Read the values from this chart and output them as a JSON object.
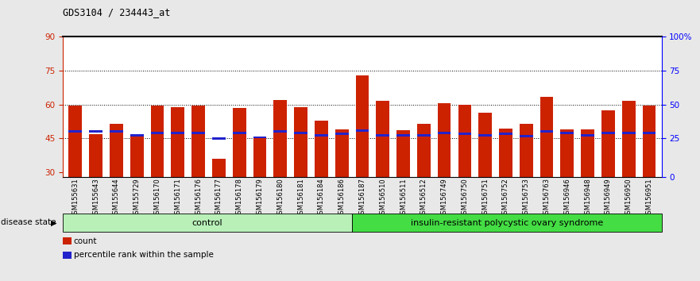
{
  "title": "GDS3104 / 234443_at",
  "samples": [
    "GSM155631",
    "GSM155643",
    "GSM155644",
    "GSM155729",
    "GSM156170",
    "GSM156171",
    "GSM156176",
    "GSM156177",
    "GSM156178",
    "GSM156179",
    "GSM156180",
    "GSM156181",
    "GSM156184",
    "GSM156186",
    "GSM156187",
    "GSM156510",
    "GSM156511",
    "GSM156512",
    "GSM156749",
    "GSM156750",
    "GSM156751",
    "GSM156752",
    "GSM156753",
    "GSM156763",
    "GSM156946",
    "GSM156948",
    "GSM156949",
    "GSM156950",
    "GSM156951"
  ],
  "count_values": [
    59.5,
    47.0,
    51.5,
    46.5,
    59.5,
    59.0,
    59.5,
    36.0,
    58.5,
    45.5,
    62.0,
    59.0,
    53.0,
    49.0,
    73.0,
    61.5,
    48.5,
    51.5,
    60.5,
    60.0,
    56.5,
    49.5,
    51.5,
    63.5,
    49.0,
    49.0,
    57.5,
    61.5,
    59.5
  ],
  "percentile_values": [
    48.0,
    48.0,
    48.0,
    46.5,
    47.5,
    47.5,
    47.5,
    45.0,
    47.5,
    45.5,
    48.0,
    47.5,
    46.5,
    47.0,
    48.5,
    46.5,
    46.5,
    46.5,
    47.5,
    47.0,
    46.5,
    47.0,
    46.0,
    48.0,
    47.5,
    46.5,
    47.5,
    47.5,
    47.5
  ],
  "control_count": 14,
  "group1_label": "control",
  "group2_label": "insulin-resistant polycystic ovary syndrome",
  "ymin": 28,
  "ymax": 90,
  "yticks_left": [
    30,
    45,
    60,
    75,
    90
  ],
  "yticks_right_labels": [
    "0",
    "25",
    "50",
    "75",
    "100%"
  ],
  "yticks_right_values": [
    28,
    45,
    60,
    75,
    90
  ],
  "bar_color_red": "#cc2200",
  "bar_color_blue": "#2222cc",
  "background_color": "#e8e8e8",
  "plot_bg": "#ffffff",
  "bar_width": 0.65,
  "legend_label_count": "count",
  "legend_label_percentile": "percentile rank within the sample",
  "ctrl_color": "#b8f0b8",
  "disease_color": "#44dd44"
}
